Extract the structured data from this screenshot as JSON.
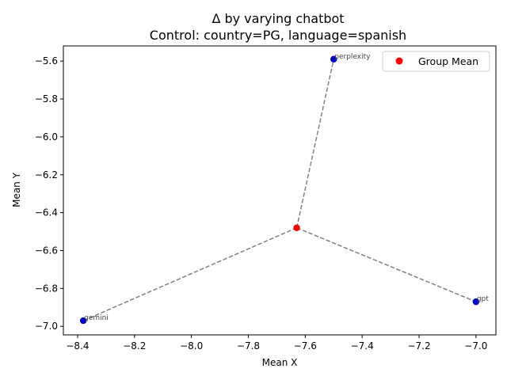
{
  "chart_data": {
    "type": "scatter",
    "title_line1": "Δ by varying chatbot",
    "title_line2": "Control: country=PG, language=spanish",
    "xlabel": "Mean X",
    "ylabel": "Mean Y",
    "xlim": [
      -8.45,
      -6.93
    ],
    "ylim": [
      -7.045,
      -5.52
    ],
    "xticks": [
      -8.4,
      -8.2,
      -8.0,
      -7.8,
      -7.6,
      -7.4,
      -7.2,
      -7.0
    ],
    "yticks": [
      -5.6,
      -5.8,
      -6.0,
      -6.2,
      -6.4,
      -6.6,
      -6.8,
      -7.0
    ],
    "xtick_labels": [
      "−8.4",
      "−8.2",
      "−8.0",
      "−7.8",
      "−7.6",
      "−7.4",
      "−7.2",
      "−7.0"
    ],
    "ytick_labels": [
      "−5.6",
      "−5.8",
      "−6.0",
      "−6.2",
      "−6.4",
      "−6.6",
      "−6.8",
      "−7.0"
    ],
    "points": [
      {
        "label": "perplexity",
        "x": -7.5,
        "y": -5.59
      },
      {
        "label": "gpt",
        "x": -7.0,
        "y": -6.87
      },
      {
        "label": "gemini",
        "x": -8.38,
        "y": -6.97
      }
    ],
    "group_mean": {
      "x": -7.63,
      "y": -6.48
    },
    "legend": {
      "label": "Group Mean",
      "placement": "upper right"
    },
    "colors": {
      "point": "#0000cc",
      "group_mean": "#ff0000",
      "line": "#808080"
    },
    "grid": false
  }
}
